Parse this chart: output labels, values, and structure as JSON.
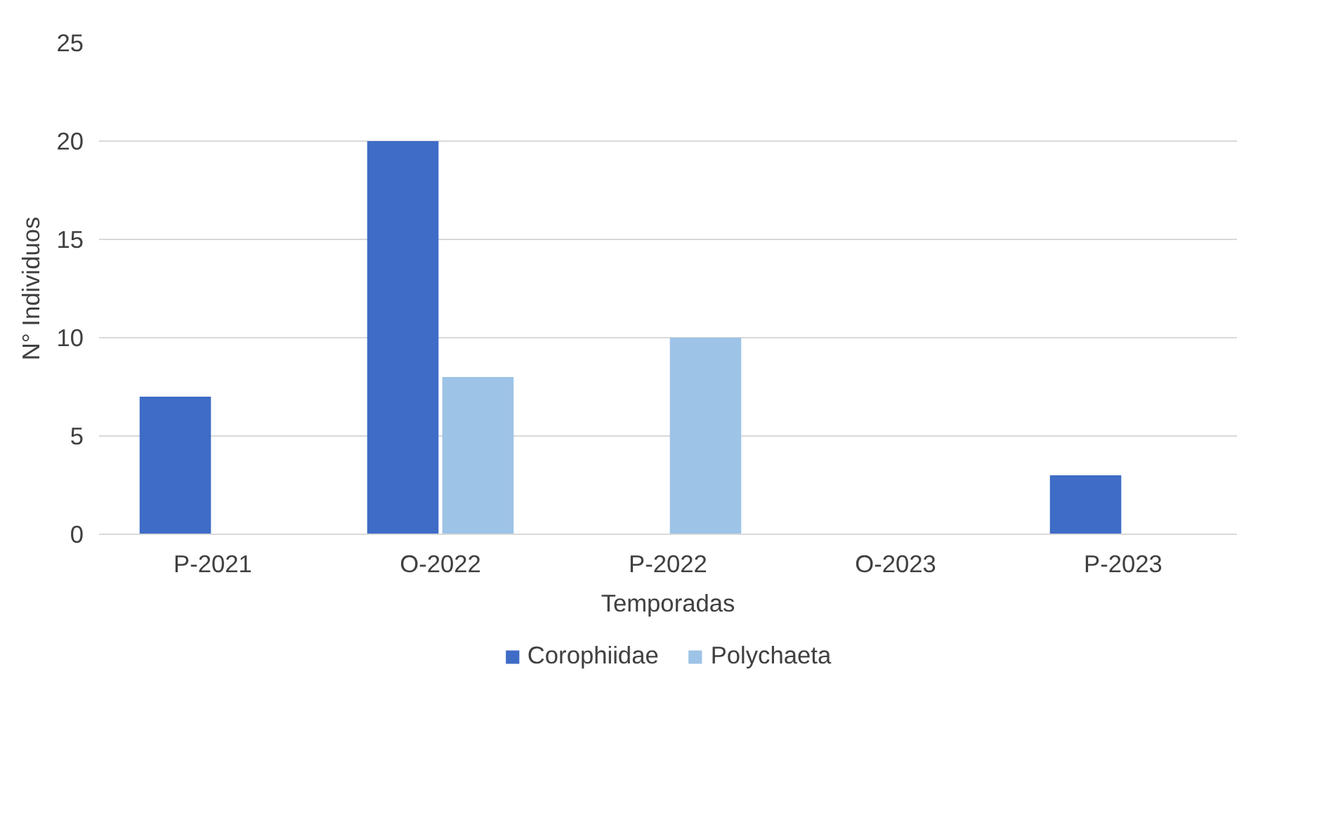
{
  "chart_data": {
    "type": "bar",
    "xlabel": "Temporadas",
    "ylabel": "N° Individuos",
    "categories": [
      "P-2021",
      "O-2022",
      "P-2022",
      "O-2023",
      "P-2023"
    ],
    "series": [
      {
        "name": "Corophiidae",
        "color": "#3e6cc6",
        "values": [
          7,
          20,
          0,
          0,
          3
        ]
      },
      {
        "name": "Polychaeta",
        "color": "#9dc3e6",
        "values": [
          0,
          8,
          10,
          0,
          0
        ]
      }
    ],
    "ylim": [
      0,
      25
    ],
    "yticks": [
      0,
      5,
      10,
      15,
      20,
      25
    ],
    "grid": "y",
    "legend": "bottom"
  }
}
